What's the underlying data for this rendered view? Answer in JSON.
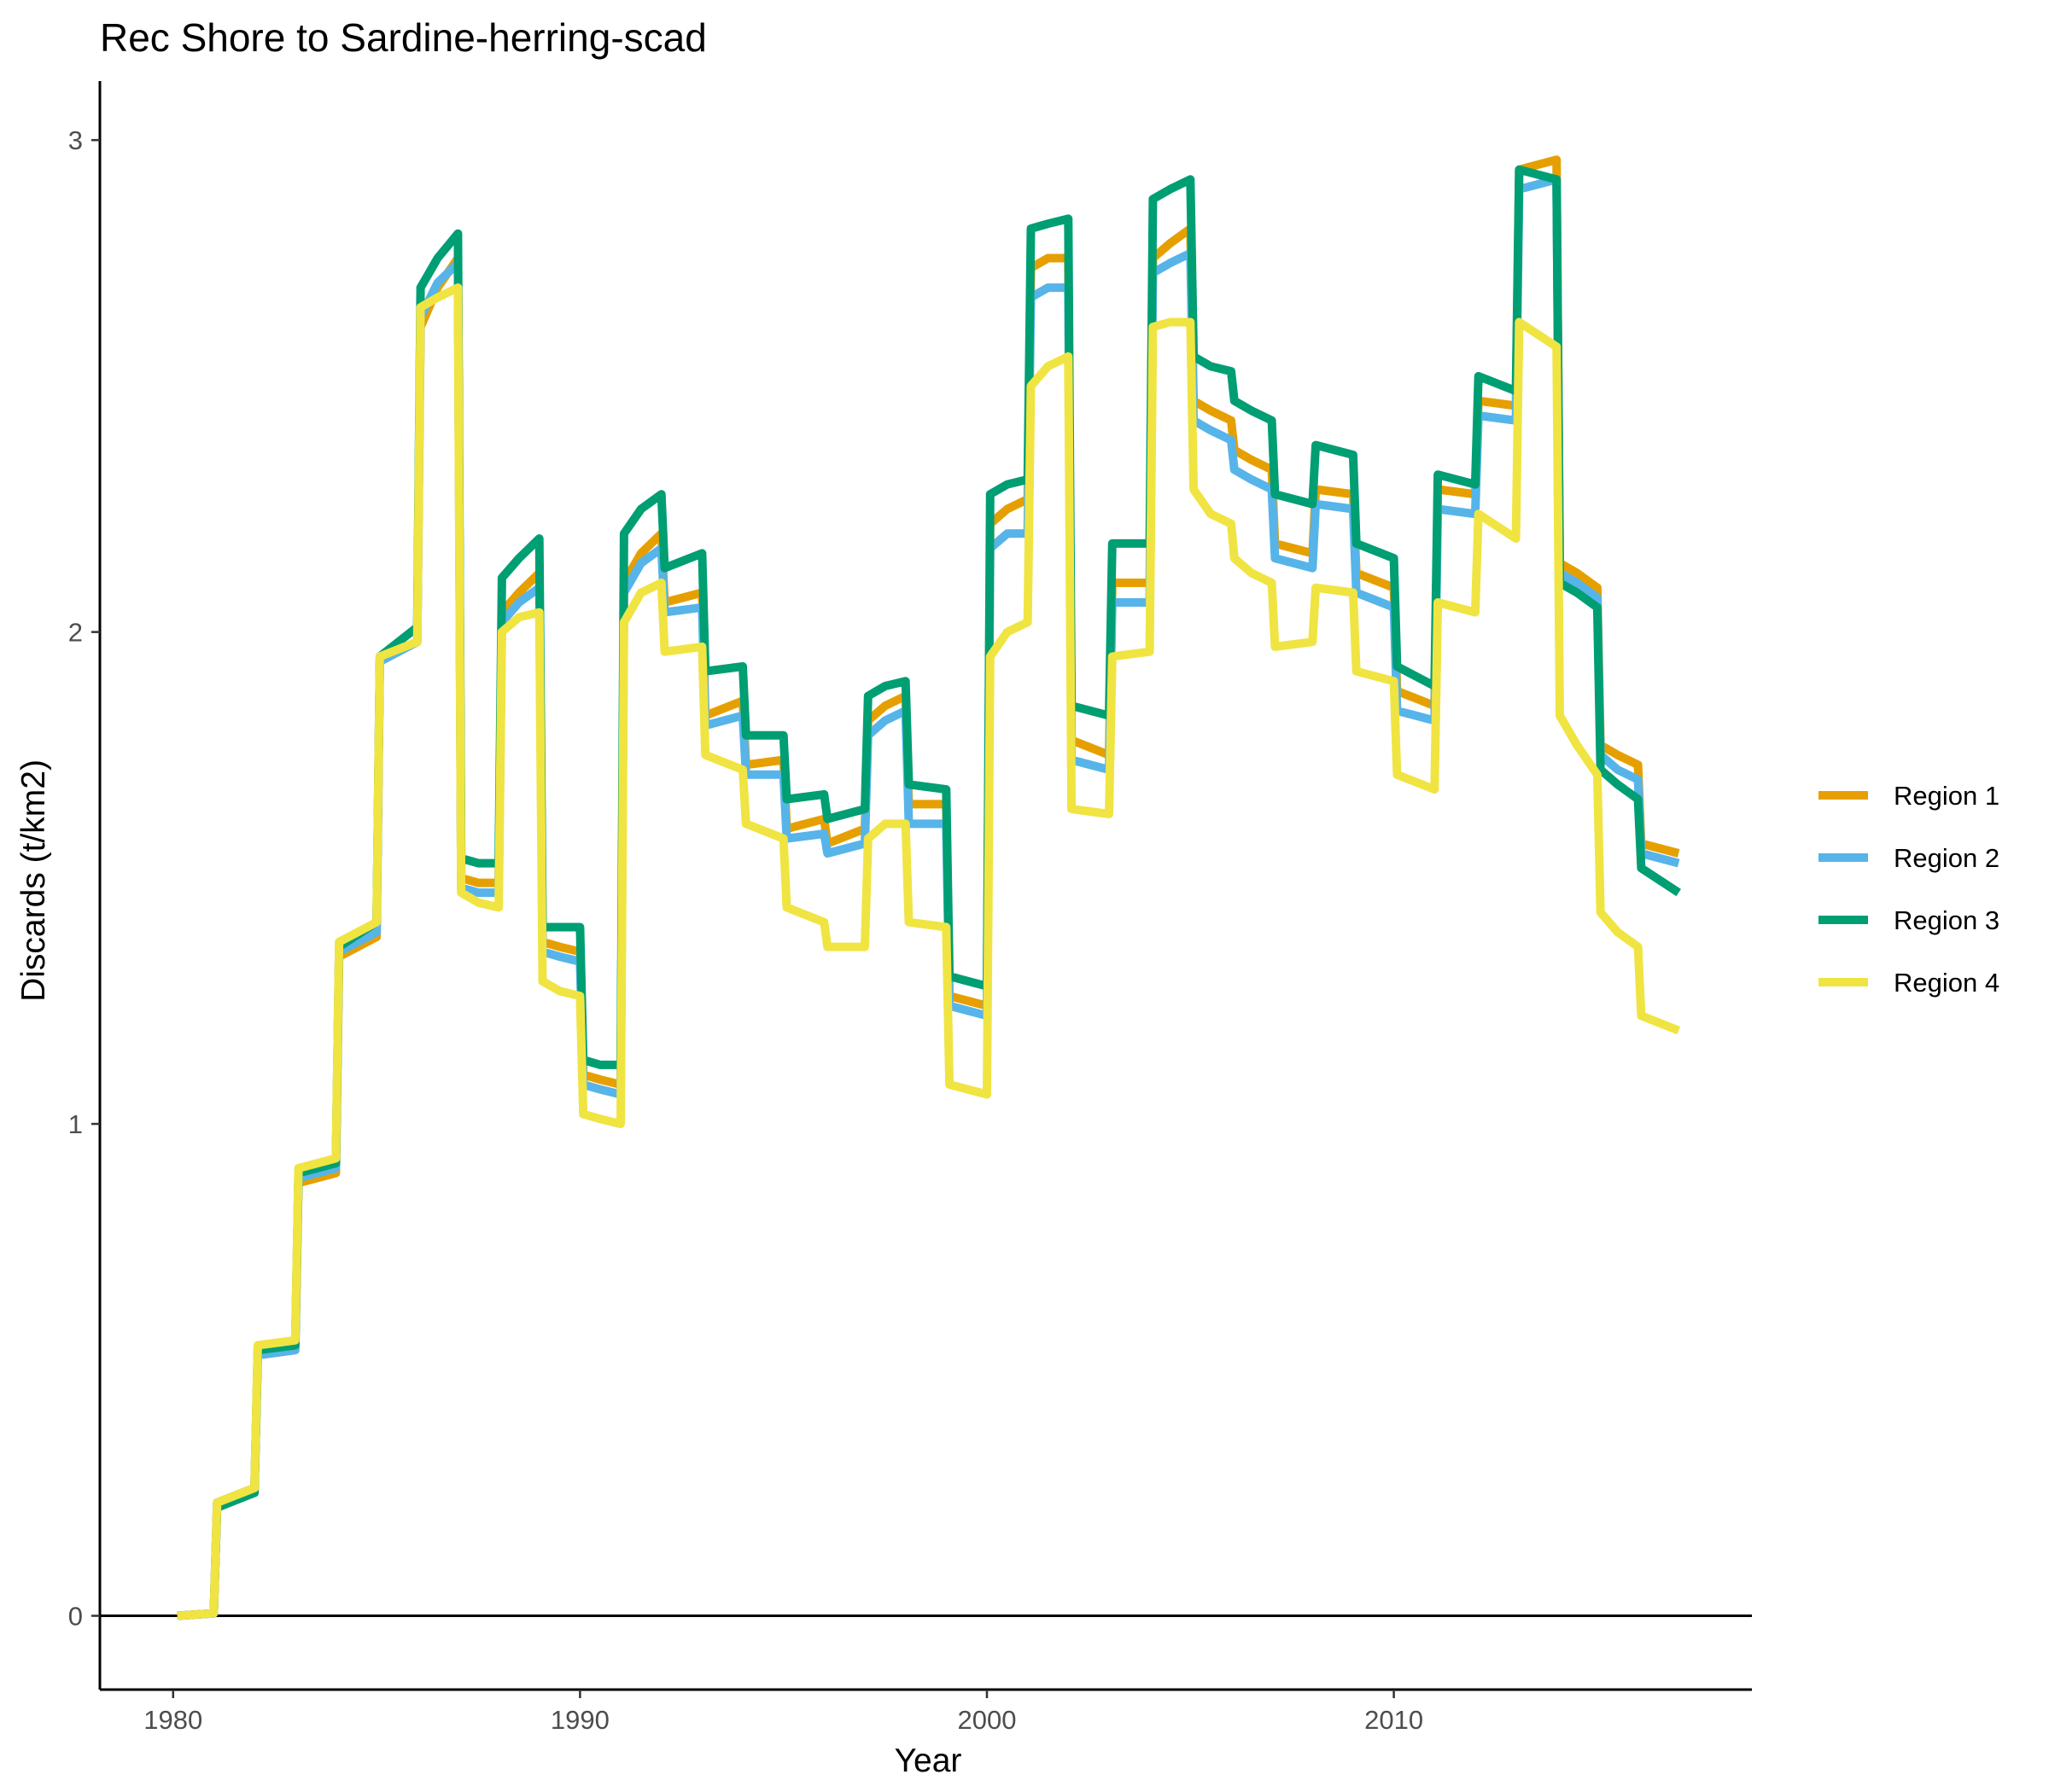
{
  "chart_data": {
    "type": "line",
    "title": "Rec Shore to Sardine-herring-scad",
    "xlabel": "Year",
    "ylabel": "Discards (t/km2)",
    "xlim": [
      1978.2,
      2018.8
    ],
    "ylim": [
      -0.15,
      3.12
    ],
    "x_ticks": [
      1980,
      1990,
      2000,
      2010
    ],
    "x_tick_labels": [
      "1980",
      "1990",
      "2000",
      "2010"
    ],
    "y_ticks": [
      0,
      1,
      2,
      3
    ],
    "y_tick_labels": [
      "0",
      "1",
      "2",
      "3"
    ],
    "zero_line": true,
    "grid": false,
    "legend_position": "right",
    "x": [
      1980.1,
      1981,
      1981.08,
      1982,
      1982.08,
      1983,
      1983.08,
      1984,
      1984.08,
      1985,
      1985.08,
      1986,
      1986.08,
      1986.5,
      1987,
      1987.08,
      1987.5,
      1988,
      1988.08,
      1988.5,
      1989,
      1989.08,
      1989.5,
      1990,
      1990.08,
      1990.5,
      1991,
      1991.08,
      1991.5,
      1992,
      1992.08,
      1993,
      1993.08,
      1994,
      1994.08,
      1995,
      1995.08,
      1996,
      1996.08,
      1997,
      1997.08,
      1997.5,
      1998,
      1998.08,
      1999,
      1999.08,
      2000,
      2000.08,
      2000.5,
      2001,
      2001.08,
      2001.5,
      2002,
      2002.08,
      2003,
      2003.08,
      2004,
      2004.08,
      2004.5,
      2005,
      2005.08,
      2005.5,
      2006,
      2006.08,
      2006.5,
      2007,
      2007.08,
      2008,
      2008.08,
      2009,
      2009.08,
      2010,
      2010.08,
      2011,
      2011.08,
      2012,
      2012.08,
      2013,
      2013.08,
      2014,
      2014.08,
      2014.5,
      2015,
      2015.08,
      2015.5,
      2016,
      2016.08,
      2017
    ],
    "series": [
      {
        "name": "Region 1",
        "color": "#E69F00",
        "values": [
          0,
          0.005,
          0.23,
          0.26,
          0.53,
          0.54,
          0.88,
          0.9,
          1.34,
          1.38,
          1.94,
          1.98,
          2.62,
          2.7,
          2.76,
          1.5,
          1.49,
          1.49,
          2.04,
          2.08,
          2.12,
          1.37,
          1.36,
          1.35,
          1.1,
          1.09,
          1.08,
          2.1,
          2.16,
          2.2,
          2.06,
          2.08,
          1.83,
          1.86,
          1.73,
          1.74,
          1.6,
          1.62,
          1.57,
          1.6,
          1.82,
          1.85,
          1.87,
          1.65,
          1.65,
          1.26,
          1.24,
          2.22,
          2.25,
          2.27,
          2.74,
          2.76,
          2.76,
          1.78,
          1.75,
          2.1,
          2.1,
          2.76,
          2.79,
          2.82,
          2.47,
          2.45,
          2.43,
          2.37,
          2.35,
          2.33,
          2.18,
          2.16,
          2.29,
          2.28,
          2.12,
          2.09,
          1.88,
          1.85,
          2.29,
          2.28,
          2.47,
          2.46,
          2.94,
          2.96,
          2.14,
          2.12,
          2.09,
          1.77,
          1.75,
          1.73,
          1.57,
          1.55
        ]
      },
      {
        "name": "Region 2",
        "color": "#56B4E9",
        "values": [
          0,
          0.005,
          0.23,
          0.26,
          0.53,
          0.54,
          0.89,
          0.91,
          1.35,
          1.39,
          1.94,
          1.98,
          2.64,
          2.71,
          2.75,
          1.48,
          1.47,
          1.47,
          2.02,
          2.06,
          2.09,
          1.35,
          1.34,
          1.33,
          1.08,
          1.07,
          1.06,
          2.08,
          2.14,
          2.17,
          2.04,
          2.05,
          1.81,
          1.83,
          1.71,
          1.71,
          1.58,
          1.59,
          1.55,
          1.57,
          1.79,
          1.82,
          1.84,
          1.61,
          1.61,
          1.24,
          1.22,
          2.17,
          2.2,
          2.2,
          2.68,
          2.7,
          2.7,
          1.74,
          1.72,
          2.06,
          2.06,
          2.73,
          2.75,
          2.77,
          2.43,
          2.41,
          2.39,
          2.33,
          2.31,
          2.29,
          2.15,
          2.13,
          2.26,
          2.25,
          2.08,
          2.05,
          1.84,
          1.82,
          2.25,
          2.24,
          2.44,
          2.43,
          2.9,
          2.92,
          2.12,
          2.1,
          2.07,
          1.75,
          1.72,
          1.7,
          1.55,
          1.53
        ]
      },
      {
        "name": "Region 3",
        "color": "#009E73",
        "values": [
          0,
          0.005,
          0.22,
          0.25,
          0.54,
          0.55,
          0.9,
          0.92,
          1.36,
          1.41,
          1.95,
          2.01,
          2.7,
          2.76,
          2.81,
          1.54,
          1.53,
          1.53,
          2.11,
          2.15,
          2.19,
          1.4,
          1.4,
          1.4,
          1.13,
          1.12,
          1.12,
          2.2,
          2.25,
          2.28,
          2.13,
          2.16,
          1.92,
          1.93,
          1.79,
          1.79,
          1.66,
          1.67,
          1.62,
          1.64,
          1.87,
          1.89,
          1.9,
          1.69,
          1.68,
          1.3,
          1.28,
          2.28,
          2.3,
          2.31,
          2.82,
          2.83,
          2.84,
          1.85,
          1.83,
          2.18,
          2.18,
          2.88,
          2.9,
          2.92,
          2.56,
          2.54,
          2.53,
          2.47,
          2.45,
          2.43,
          2.28,
          2.26,
          2.38,
          2.36,
          2.18,
          2.15,
          1.93,
          1.89,
          2.32,
          2.3,
          2.52,
          2.49,
          2.94,
          2.92,
          2.1,
          2.08,
          2.05,
          1.72,
          1.69,
          1.66,
          1.52,
          1.47
        ]
      },
      {
        "name": "Region 4",
        "color": "#F0E442",
        "values": [
          0,
          0.005,
          0.23,
          0.26,
          0.55,
          0.56,
          0.91,
          0.93,
          1.37,
          1.41,
          1.95,
          1.98,
          2.66,
          2.68,
          2.7,
          1.47,
          1.45,
          1.44,
          2,
          2.03,
          2.04,
          1.29,
          1.27,
          1.26,
          1.02,
          1.01,
          1,
          2.02,
          2.08,
          2.1,
          1.96,
          1.97,
          1.75,
          1.72,
          1.61,
          1.58,
          1.44,
          1.41,
          1.36,
          1.36,
          1.58,
          1.61,
          1.61,
          1.41,
          1.4,
          1.08,
          1.06,
          1.95,
          2,
          2.02,
          2.5,
          2.54,
          2.56,
          1.64,
          1.63,
          1.95,
          1.96,
          2.62,
          2.63,
          2.63,
          2.29,
          2.24,
          2.22,
          2.15,
          2.12,
          2.1,
          1.97,
          1.98,
          2.09,
          2.08,
          1.92,
          1.9,
          1.71,
          1.68,
          2.06,
          2.04,
          2.24,
          2.19,
          2.63,
          2.58,
          1.83,
          1.77,
          1.71,
          1.43,
          1.39,
          1.36,
          1.22,
          1.19
        ]
      }
    ]
  }
}
